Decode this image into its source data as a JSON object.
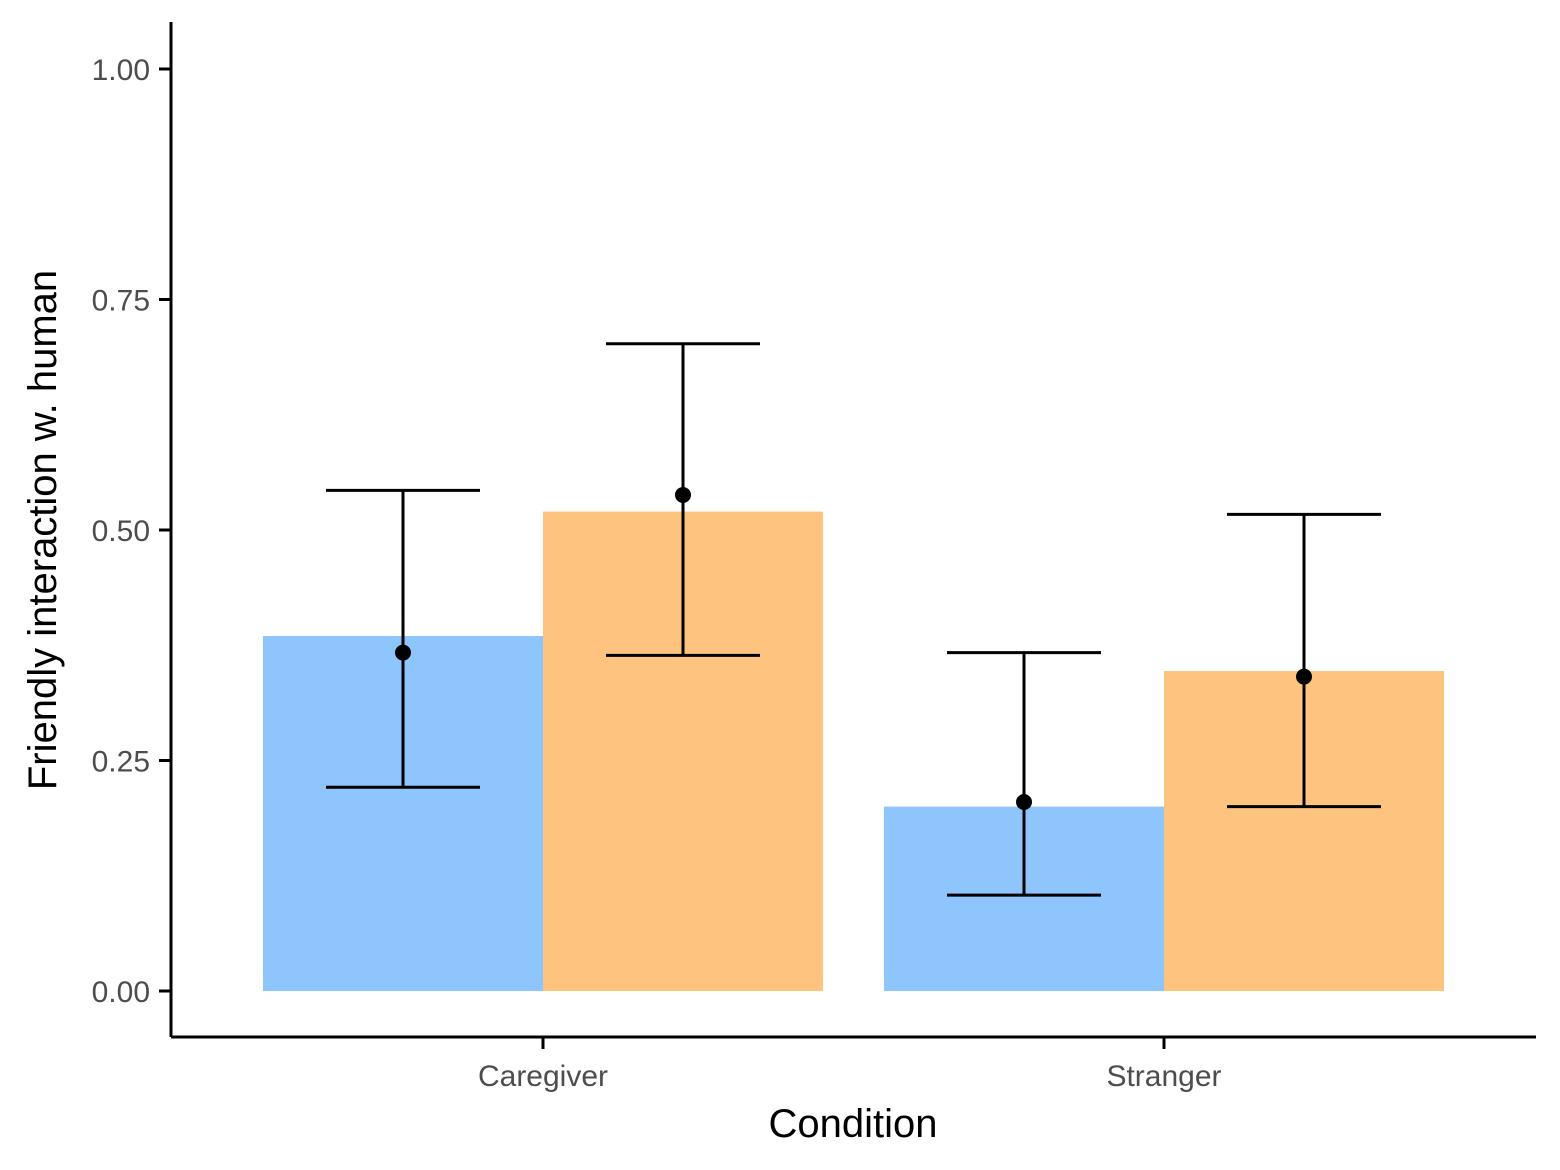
{
  "chart_data": {
    "type": "bar",
    "xlabel": "Condition",
    "ylabel": "Friendly interaction w. human",
    "categories": [
      "Caregiver",
      "Stranger"
    ],
    "ylim": [
      -0.05,
      1.05
    ],
    "yticks": [
      0.0,
      0.25,
      0.5,
      0.75,
      1.0
    ],
    "ytick_labels": [
      "0.00",
      "0.25",
      "0.50",
      "0.75",
      "1.00"
    ],
    "grid": false,
    "legend": "none",
    "series": [
      {
        "color": "#8ec5fd",
        "values": [
          0.385,
          0.2
        ],
        "points": [
          0.367,
          0.205
        ],
        "error_low": [
          0.221,
          0.104
        ],
        "error_high": [
          0.543,
          0.367
        ]
      },
      {
        "color": "#fec47f",
        "values": [
          0.52,
          0.347
        ],
        "points": [
          0.538,
          0.341
        ],
        "error_low": [
          0.364,
          0.2
        ],
        "error_high": [
          0.702,
          0.517
        ]
      }
    ]
  }
}
